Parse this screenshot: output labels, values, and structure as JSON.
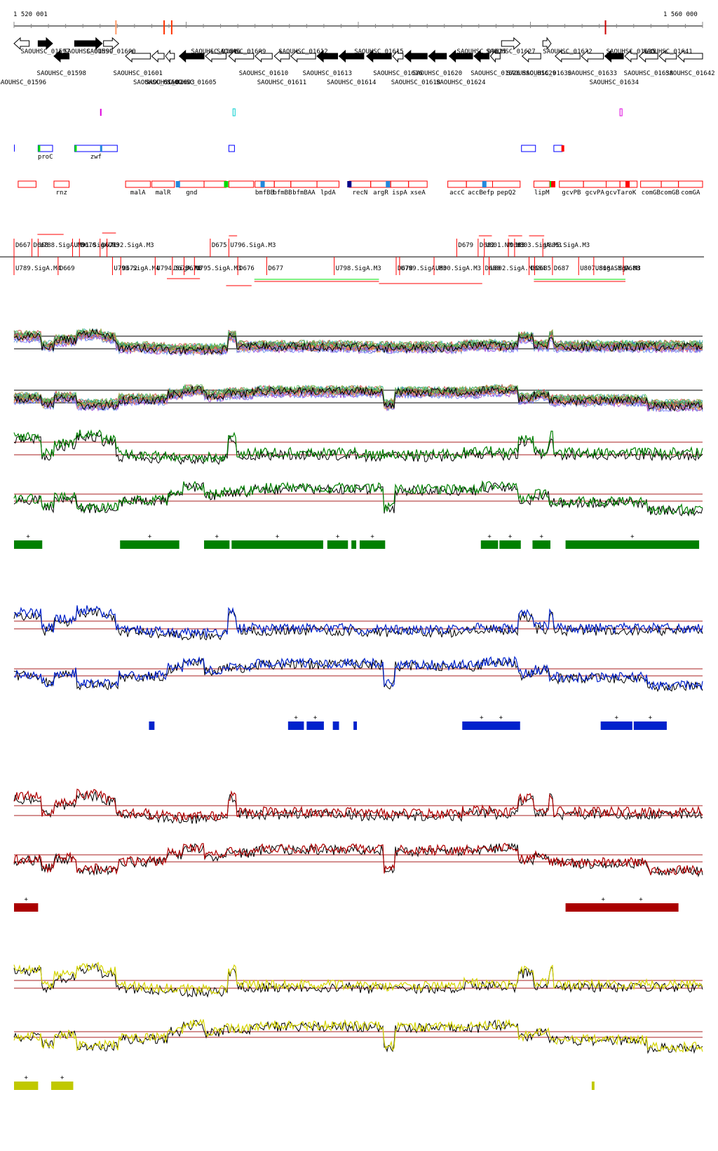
{
  "coords": {
    "start_label": "1 520 001",
    "end_label": "1 560 000",
    "start": 1520001,
    "end": 1560000
  },
  "annotation_colors": {
    "forward_gene": "#000000",
    "reverse_gene": "#ffffff",
    "red": "#ff0000",
    "blue": "#0000ff",
    "magenta": "#dd00dd",
    "cyan": "#00cccc",
    "green": "#00dd00",
    "steelblue": "#2288dd",
    "navy": "#000088"
  },
  "genes": [
    {
      "id": "SAOUHSC_01596",
      "s": 0.0,
      "e": 0.022,
      "strand": "-",
      "fill": "white",
      "row": 0,
      "label_row": 2
    },
    {
      "id": "SAOUHSC_01597",
      "s": 0.035,
      "e": 0.056,
      "strand": "+",
      "fill": "black",
      "row": 0,
      "label_row": 0
    },
    {
      "id": "SAOUHSC_01598",
      "s": 0.058,
      "e": 0.08,
      "strand": "-",
      "fill": "black",
      "row": 1,
      "label_row": 1
    },
    {
      "id": "SAOUHSC_01599",
      "s": 0.088,
      "e": 0.128,
      "strand": "+",
      "fill": "black",
      "row": 0,
      "label_row": 0
    },
    {
      "id": "SAOUHSC_01600",
      "s": 0.13,
      "e": 0.152,
      "strand": "+",
      "fill": "white",
      "row": 0,
      "label_row": 0
    },
    {
      "id": "SAOUHSC_01601",
      "s": 0.162,
      "e": 0.198,
      "strand": "-",
      "fill": "white",
      "row": 1,
      "label_row": 1
    },
    {
      "id": "SAOUHSC_01602",
      "s": 0.2,
      "e": 0.218,
      "strand": "-",
      "fill": "white",
      "row": 1,
      "label_row": 2
    },
    {
      "id": "SAOUHSC_01603",
      "s": 0.22,
      "e": 0.233,
      "strand": "-",
      "fill": "white",
      "row": 1,
      "label_row": 2
    },
    {
      "id": "SAOUHSC_01605",
      "s": 0.24,
      "e": 0.276,
      "strand": "-",
      "fill": "black",
      "row": 1,
      "label_row": 2
    },
    {
      "id": "SAOUHSC_01606",
      "s": 0.278,
      "e": 0.308,
      "strand": "-",
      "fill": "white",
      "row": 1,
      "label_row": 0
    },
    {
      "id": "SAOUHSC_01609",
      "s": 0.312,
      "e": 0.348,
      "strand": "-",
      "fill": "white",
      "row": 1,
      "label_row": 0
    },
    {
      "id": "SAOUHSC_01610",
      "s": 0.35,
      "e": 0.375,
      "strand": "-",
      "fill": "white",
      "row": 1,
      "label_row": 1
    },
    {
      "id": "SAOUHSC_01611",
      "s": 0.378,
      "e": 0.4,
      "strand": "-",
      "fill": "white",
      "row": 1,
      "label_row": 2
    },
    {
      "id": "SAOUHSC_01612",
      "s": 0.402,
      "e": 0.438,
      "strand": "-",
      "fill": "white",
      "row": 1,
      "label_row": 0
    },
    {
      "id": "SAOUHSC_01613",
      "s": 0.44,
      "e": 0.47,
      "strand": "-",
      "fill": "black",
      "row": 1,
      "label_row": 1
    },
    {
      "id": "SAOUHSC_01614",
      "s": 0.472,
      "e": 0.508,
      "strand": "-",
      "fill": "black",
      "row": 1,
      "label_row": 2
    },
    {
      "id": "SAOUHSC_01615",
      "s": 0.512,
      "e": 0.548,
      "strand": "-",
      "fill": "black",
      "row": 1,
      "label_row": 0
    },
    {
      "id": "SAOUHSC_01616",
      "s": 0.55,
      "e": 0.565,
      "strand": "-",
      "fill": "white",
      "row": 1,
      "label_row": 1
    },
    {
      "id": "SAOUHSC_01618",
      "s": 0.567,
      "e": 0.6,
      "strand": "-",
      "fill": "black",
      "row": 1,
      "label_row": 2
    },
    {
      "id": "SAOUHSC_01620",
      "s": 0.602,
      "e": 0.628,
      "strand": "-",
      "fill": "black",
      "row": 1,
      "label_row": 1
    },
    {
      "id": "SAOUHSC_01624",
      "s": 0.632,
      "e": 0.666,
      "strand": "-",
      "fill": "black",
      "row": 1,
      "label_row": 2
    },
    {
      "id": "SAOUHSC_01625",
      "s": 0.668,
      "e": 0.69,
      "strand": "-",
      "fill": "black",
      "row": 1,
      "label_row": 0
    },
    {
      "id": "SAOUHSC_01626",
      "s": 0.692,
      "e": 0.706,
      "strand": "-",
      "fill": "white",
      "row": 1,
      "label_row": 1
    },
    {
      "id": "SAOUHSC_01627",
      "s": 0.708,
      "e": 0.735,
      "strand": "+",
      "fill": "white",
      "row": 0,
      "label_row": 0
    },
    {
      "id": "SAOUHSC_01629",
      "s": 0.738,
      "e": 0.765,
      "strand": "-",
      "fill": "white",
      "row": 1,
      "label_row": 1
    },
    {
      "id": "SAOUHSC_01630",
      "s": 0.768,
      "e": 0.78,
      "strand": "+",
      "fill": "white",
      "row": 0,
      "label_row": 1
    },
    {
      "id": "SAOUHSC_01632",
      "s": 0.786,
      "e": 0.822,
      "strand": "-",
      "fill": "white",
      "row": 1,
      "label_row": 0
    },
    {
      "id": "SAOUHSC_01633",
      "s": 0.824,
      "e": 0.856,
      "strand": "-",
      "fill": "white",
      "row": 1,
      "label_row": 1
    },
    {
      "id": "SAOUHSC_01634",
      "s": 0.858,
      "e": 0.885,
      "strand": "-",
      "fill": "black",
      "row": 1,
      "label_row": 2
    },
    {
      "id": "SAOUHSC_01635",
      "s": 0.887,
      "e": 0.905,
      "strand": "-",
      "fill": "white",
      "row": 1,
      "label_row": 0
    },
    {
      "id": "SAOUHSC_01638",
      "s": 0.908,
      "e": 0.935,
      "strand": "-",
      "fill": "white",
      "row": 1,
      "label_row": 1
    },
    {
      "id": "SAOUHSC_01641",
      "s": 0.937,
      "e": 0.962,
      "strand": "-",
      "fill": "white",
      "row": 1,
      "label_row": 0
    },
    {
      "id": "SAOUHSC_01642",
      "s": 0.964,
      "e": 1.0,
      "strand": "-",
      "fill": "white",
      "row": 1,
      "label_row": 1
    }
  ],
  "gene_names_blue": [
    {
      "name": "proC",
      "s": 0.035,
      "e": 0.056
    },
    {
      "name": "zwf",
      "s": 0.088,
      "e": 0.15
    }
  ],
  "gene_names_red": [
    {
      "name": "rnz",
      "s": 0.058,
      "e": 0.08
    },
    {
      "name": "malA",
      "s": 0.162,
      "e": 0.198
    },
    {
      "name": "malR",
      "s": 0.2,
      "e": 0.233
    },
    {
      "name": "gnd",
      "s": 0.24,
      "e": 0.276
    },
    {
      "name": "bmfBB",
      "s": 0.35,
      "e": 0.378
    },
    {
      "name": "bfmBB",
      "s": 0.378,
      "e": 0.402
    },
    {
      "name": "bfmBAA",
      "s": 0.402,
      "e": 0.44
    },
    {
      "name": "lpdA",
      "s": 0.44,
      "e": 0.472
    },
    {
      "name": "recN",
      "s": 0.487,
      "e": 0.518
    },
    {
      "name": "argR",
      "s": 0.518,
      "e": 0.547
    },
    {
      "name": "ispA",
      "s": 0.547,
      "e": 0.573
    },
    {
      "name": "xseA",
      "s": 0.573,
      "e": 0.6
    },
    {
      "name": "accC",
      "s": 0.63,
      "e": 0.657
    },
    {
      "name": "accB",
      "s": 0.657,
      "e": 0.683
    },
    {
      "name": "efp",
      "s": 0.683,
      "e": 0.695
    },
    {
      "name": "pepQ2",
      "s": 0.695,
      "e": 0.735
    },
    {
      "name": "lipM",
      "s": 0.755,
      "e": 0.778
    },
    {
      "name": "gcvPB",
      "s": 0.792,
      "e": 0.827
    },
    {
      "name": "gcvPA",
      "s": 0.827,
      "e": 0.86
    },
    {
      "name": "gcvT",
      "s": 0.86,
      "e": 0.88
    },
    {
      "name": "aroK",
      "s": 0.88,
      "e": 0.905
    },
    {
      "name": "comGB",
      "s": 0.91,
      "e": 0.94
    },
    {
      "name": "comGB",
      "s": 0.94,
      "e": 0.965
    },
    {
      "name": "comGA",
      "s": 0.965,
      "e": 1.0
    }
  ],
  "segment_labels_upper": [
    {
      "label": "D667",
      "pos": 0.0
    },
    {
      "label": "U788.SigA.M3",
      "pos": 0.035
    },
    {
      "label": "D668",
      "pos": 0.026
    },
    {
      "label": "U791.SigA.M3",
      "pos": 0.085
    },
    {
      "label": "D670",
      "pos": 0.095
    },
    {
      "label": "D671",
      "pos": 0.125
    },
    {
      "label": "U792.SigA.M3",
      "pos": 0.135
    },
    {
      "label": "D675",
      "pos": 0.285
    },
    {
      "label": "U796.SigA.M3",
      "pos": 0.312
    },
    {
      "label": "D679",
      "pos": 0.643
    },
    {
      "label": "D682",
      "pos": 0.674
    },
    {
      "label": "U801.NM.M3",
      "pos": 0.683
    },
    {
      "label": "D683",
      "pos": 0.718
    },
    {
      "label": "U803.SigA.M3",
      "pos": 0.727
    },
    {
      "label": "U805.SigA.M3",
      "pos": 0.768
    }
  ],
  "segment_labels_lower": [
    {
      "label": "U789.SigA.M4",
      "pos": 0.0
    },
    {
      "label": "D669",
      "pos": 0.064
    },
    {
      "label": "D672",
      "pos": 0.155
    },
    {
      "label": "U793.SigA.M4",
      "pos": 0.143
    },
    {
      "label": "U794.SigA.M3",
      "pos": 0.205
    },
    {
      "label": "D673",
      "pos": 0.23
    },
    {
      "label": "D674",
      "pos": 0.247
    },
    {
      "label": "U795.SigA.M3",
      "pos": 0.262
    },
    {
      "label": "D676",
      "pos": 0.325
    },
    {
      "label": "D677",
      "pos": 0.367
    },
    {
      "label": "U798.SigA.M3",
      "pos": 0.465
    },
    {
      "label": "D678",
      "pos": 0.555
    },
    {
      "label": "U799.SigA.M3",
      "pos": 0.56
    },
    {
      "label": "U800.SigA.M3",
      "pos": 0.61
    },
    {
      "label": "D680",
      "pos": 0.682
    },
    {
      "label": "U802.SigA.M3",
      "pos": 0.69
    },
    {
      "label": "D684",
      "pos": 0.748
    },
    {
      "label": "D685",
      "pos": 0.756
    },
    {
      "label": "D687",
      "pos": 0.782
    },
    {
      "label": "U807.SigA.M3",
      "pos": 0.82
    },
    {
      "label": "U808.SigA.M3",
      "pos": 0.842
    },
    {
      "label": "D688",
      "pos": 0.885
    }
  ],
  "tracks": [
    {
      "id": "green",
      "color": "#008000",
      "bar_color": "#008000",
      "bars": [
        [
          0.0,
          0.041,
          1
        ],
        [
          0.154,
          0.24,
          1
        ],
        [
          0.276,
          0.313,
          1
        ],
        [
          0.316,
          0.449,
          1
        ],
        [
          0.455,
          0.485,
          1
        ],
        [
          0.49,
          0.497,
          0
        ],
        [
          0.502,
          0.539,
          1
        ],
        [
          0.678,
          0.703,
          1
        ],
        [
          0.705,
          0.736,
          1
        ],
        [
          0.753,
          0.779,
          1
        ],
        [
          0.801,
          0.995,
          1
        ]
      ]
    },
    {
      "id": "blue",
      "color": "#0022cc",
      "bar_color": "#0022cc",
      "bars": [
        [
          0.196,
          0.204,
          0
        ],
        [
          0.398,
          0.421,
          1
        ],
        [
          0.425,
          0.45,
          1
        ],
        [
          0.463,
          0.472,
          0
        ],
        [
          0.493,
          0.498,
          0
        ],
        [
          0.651,
          0.735,
          2
        ],
        [
          0.852,
          0.898,
          1
        ],
        [
          0.9,
          0.948,
          1
        ]
      ]
    },
    {
      "id": "red",
      "color": "#b00000",
      "bar_color": "#aa0000",
      "bars": [
        [
          0.0,
          0.035,
          1
        ],
        [
          0.801,
          0.965,
          2
        ]
      ]
    },
    {
      "id": "yellow",
      "color": "#d4d400",
      "bar_color": "#c0c800",
      "bars": [
        [
          0.0,
          0.035,
          1
        ],
        [
          0.054,
          0.086,
          1
        ],
        [
          0.839,
          0.843,
          0
        ]
      ]
    }
  ]
}
